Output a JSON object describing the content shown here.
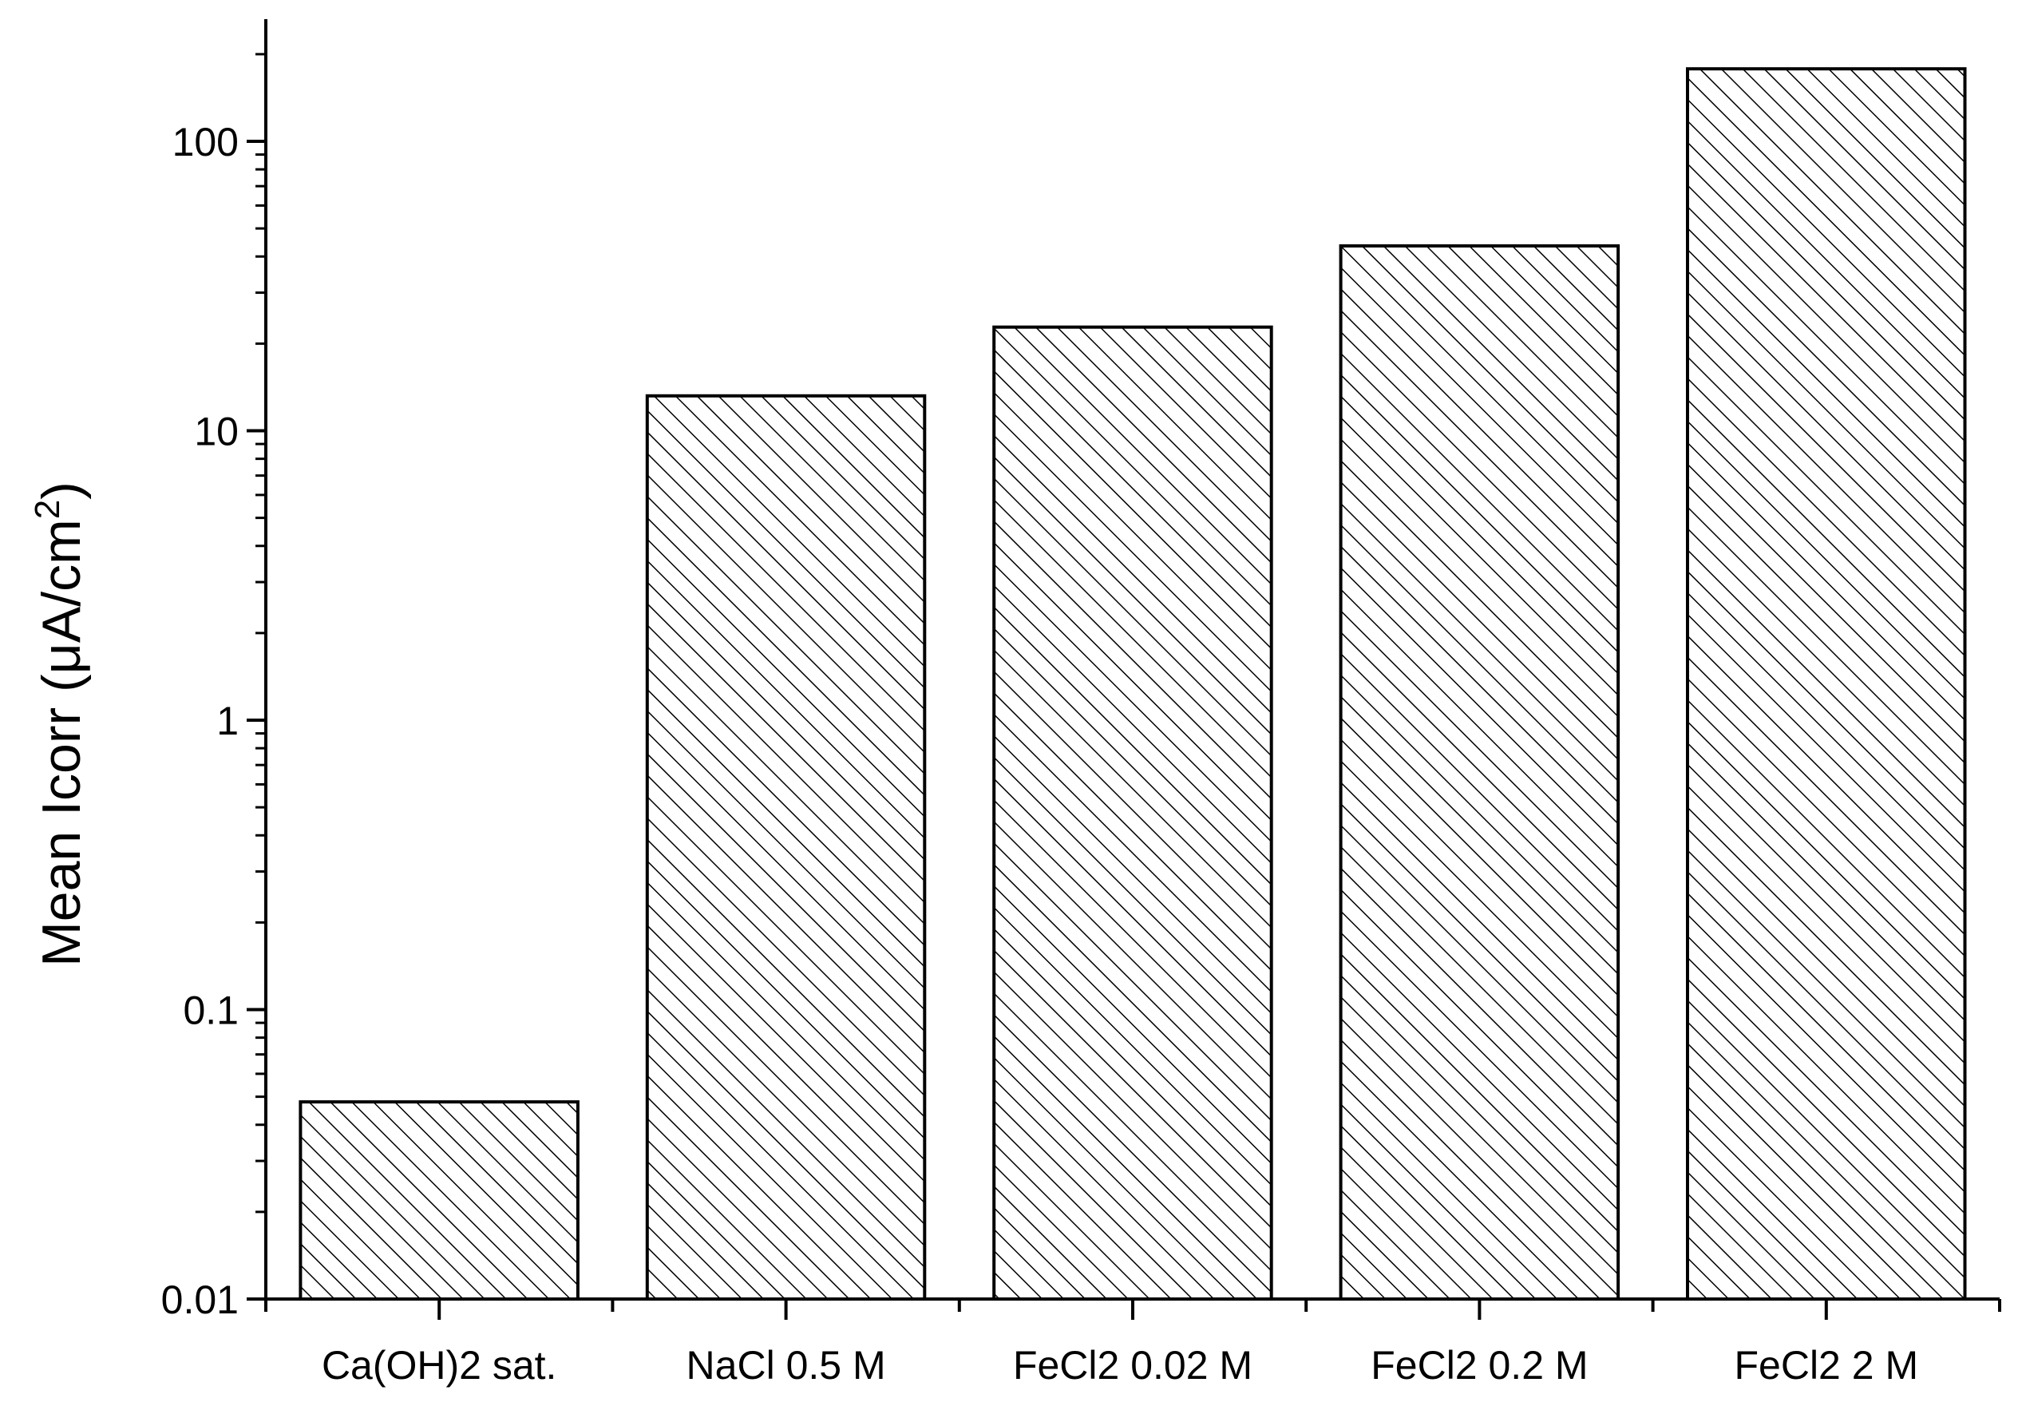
{
  "chart_data": {
    "type": "bar",
    "categories": [
      "Ca(OH)2 sat.",
      "NaCl 0.5 M",
      "FeCl2 0.02 M",
      "FeCl2 0.2 M",
      "FeCl2 2 M"
    ],
    "values": [
      0.048,
      13.2,
      22.8,
      43.5,
      178
    ],
    "title": "",
    "xlabel": "",
    "ylabel": {
      "main": "Mean Icorr (μA/cm",
      "superscript": "2",
      "close": ")"
    },
    "yscale": "log",
    "ylim": [
      0.01,
      260
    ],
    "yticks": [
      {
        "value": 0.01,
        "label": "0.01"
      },
      {
        "value": 0.1,
        "label": "0.1"
      },
      {
        "value": 1,
        "label": "1"
      },
      {
        "value": 10,
        "label": "10"
      },
      {
        "value": 100,
        "label": "100"
      }
    ],
    "bar_fill": "diagonal-hatch",
    "colors": {
      "bar_edge": "#000000",
      "hatch": "#000000",
      "background": "#ffffff",
      "axis": "#000000"
    },
    "grid": false,
    "legend": "none"
  }
}
